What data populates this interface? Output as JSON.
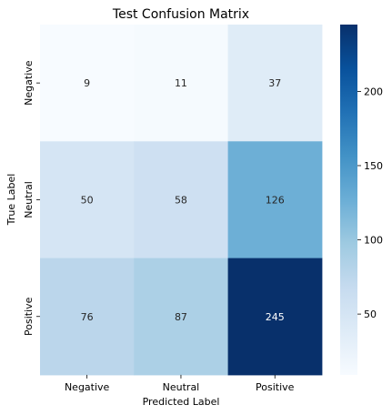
{
  "chart_data": {
    "type": "heatmap",
    "title": "Test Confusion Matrix",
    "xlabel": "Predicted Label",
    "ylabel": "True Label",
    "x_categories": [
      "Negative",
      "Neutral",
      "Positive"
    ],
    "y_categories": [
      "Negative",
      "Neutral",
      "Positive"
    ],
    "values": [
      [
        9,
        11,
        37
      ],
      [
        50,
        58,
        126
      ],
      [
        76,
        87,
        245
      ]
    ],
    "colormap": "Blues",
    "color_range": [
      9,
      245
    ],
    "colorbar_ticks": [
      50,
      100,
      150,
      200
    ],
    "colorbar_tick_labels": [
      "50",
      "100",
      "150",
      "200"
    ],
    "annotation_text_dark": "#262626",
    "annotation_text_light": "#ffffff",
    "grid": false
  }
}
